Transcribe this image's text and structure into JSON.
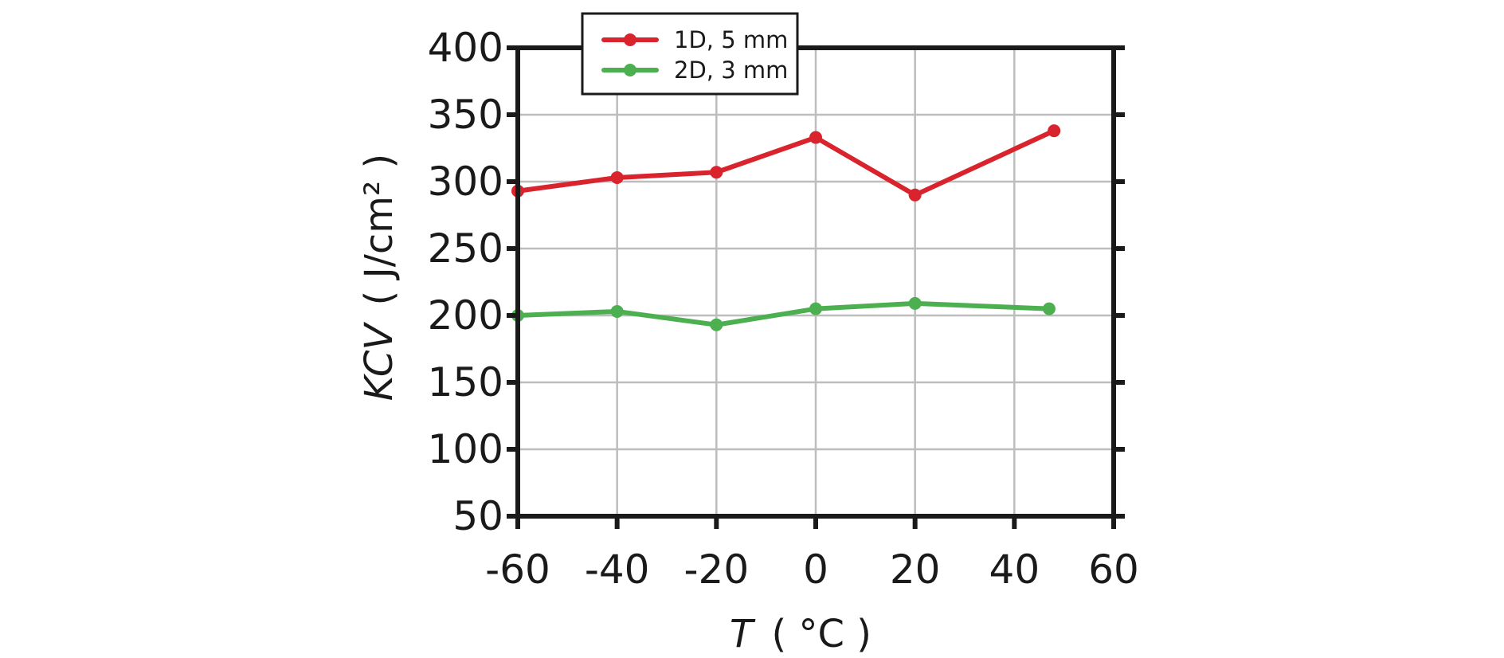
{
  "chart_data": {
    "type": "line",
    "title": "",
    "xlabel_italic": "T",
    "xlabel_unit": "( °C )",
    "ylabel_italic": "KCV",
    "ylabel_unit": "( J/cm² )",
    "xlim": [
      -60,
      60
    ],
    "ylim": [
      50,
      400
    ],
    "xticks": [
      -60,
      -40,
      -20,
      0,
      20,
      40,
      60
    ],
    "yticks": [
      50,
      100,
      150,
      200,
      250,
      300,
      350,
      400
    ],
    "grid": true,
    "legend_position": "top-left",
    "series": [
      {
        "name": "1D, 5 mm",
        "color": "#d9232d",
        "x": [
          -60,
          -40,
          -20,
          0,
          20,
          48
        ],
        "y": [
          293,
          303,
          307,
          333,
          290,
          338
        ]
      },
      {
        "name": "2D, 3 mm",
        "color": "#4caf50",
        "x": [
          -60,
          -40,
          -20,
          0,
          20,
          47
        ],
        "y": [
          200,
          203,
          193,
          205,
          209,
          205
        ]
      }
    ]
  }
}
